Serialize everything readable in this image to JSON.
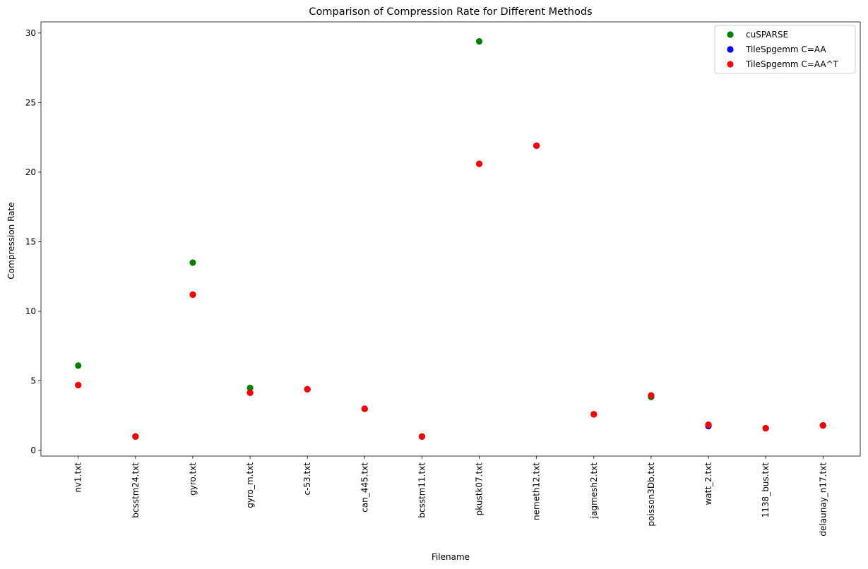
{
  "chart_data": {
    "type": "scatter",
    "title": "Comparison of Compression Rate for Different Methods",
    "xlabel": "Filename",
    "ylabel": "Compression Rate",
    "categories": [
      "nv1.txt",
      "bcsstm24.txt",
      "gyro.txt",
      "gyro_m.txt",
      "c-53.txt",
      "can_445.txt",
      "bcsstm11.txt",
      "pkustk07.txt",
      "nemeth12.txt",
      "jagmesh2.txt",
      "poisson3Db.txt",
      "watt_2.txt",
      "1138_bus.txt",
      "delaunay_n17.txt"
    ],
    "ylim": [
      -0.4,
      30.8
    ],
    "yticks": [
      0,
      5,
      10,
      15,
      20,
      25,
      30
    ],
    "grid": false,
    "legend_position": "top-right",
    "series": [
      {
        "name": "cuSPARSE",
        "color": "#008000",
        "values": [
          6.1,
          1.0,
          13.5,
          4.5,
          4.4,
          3.0,
          1.0,
          29.4,
          21.9,
          2.6,
          3.85,
          1.8,
          1.6,
          1.8
        ]
      },
      {
        "name": "TileSpgemm C=AA",
        "color": "#0000ff",
        "values": [
          4.7,
          1.0,
          11.2,
          4.15,
          4.4,
          3.0,
          1.0,
          20.6,
          21.9,
          2.6,
          3.95,
          1.75,
          1.6,
          1.8
        ]
      },
      {
        "name": "TileSpgemm C=AA^T",
        "color": "#ff0000",
        "values": [
          4.7,
          1.0,
          11.2,
          4.15,
          4.4,
          3.0,
          1.0,
          20.6,
          21.9,
          2.6,
          3.95,
          1.85,
          1.6,
          1.8
        ]
      }
    ]
  }
}
